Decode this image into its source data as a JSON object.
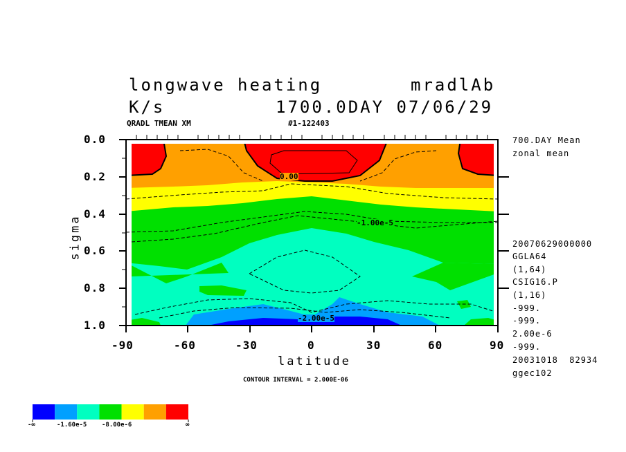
{
  "header": {
    "title_left": "longwave heating",
    "title_right": "mradlAb",
    "units": "K/s",
    "time_label": "1700.0DAY 07/06/29",
    "field_label": "QRADL TMEAN XM",
    "run_id": "#1-122403"
  },
  "side_info": {
    "top_lines": [
      "700.DAY Mean",
      "zonal mean"
    ],
    "lines": [
      "20070629000000",
      "GGLA64",
      "(1,64)",
      "CSIG16.P",
      "(1,16)",
      "-999.",
      "-999.",
      "2.00e-6",
      "-999.",
      "20031018  82934",
      "ggec102"
    ]
  },
  "contour_interval": "CONTOUR INTERVAL = 2.000E-06",
  "colorbar": {
    "colors": [
      "#0000ff",
      "#00a0ff",
      "#00ffc0",
      "#00e000",
      "#ffff00",
      "#ffa000",
      "#ff0000"
    ],
    "labels": [
      "-∞",
      "-1.60e-5",
      "-8.00e-6",
      "∞"
    ]
  },
  "chart_data": {
    "type": "contour",
    "title": "longwave heating",
    "xlabel": "latitude",
    "ylabel": "sigma",
    "xlim": [
      -90,
      90
    ],
    "ylim": [
      1.0,
      0.0
    ],
    "x_ticks": [
      "-90",
      "-60",
      "-30",
      "0",
      "30",
      "60",
      "90"
    ],
    "y_ticks": [
      "0.0",
      "0.2",
      "0.4",
      "0.6",
      "0.8",
      "1.0"
    ],
    "contour_labels": [
      "0.00",
      "-1.00e-5",
      "-2.00e-5"
    ],
    "bands": [
      {
        "color": "orange",
        "sigma_top": 0.0,
        "sigma_bottom": 0.3
      },
      {
        "color": "yellow",
        "sigma_top": 0.25,
        "sigma_bottom": 0.4
      },
      {
        "color": "green",
        "sigma_top": 0.3,
        "sigma_bottom": 0.8
      },
      {
        "color": "cyan-green",
        "sigma_top": 0.45,
        "sigma_bottom": 1.0
      },
      {
        "color": "light-blue",
        "sigma_top": 0.85,
        "sigma_bottom": 1.0
      },
      {
        "color": "blue",
        "sigma_top": 0.95,
        "sigma_bottom": 1.0
      }
    ],
    "red_regions": [
      "polar upper -90..-70",
      "equatorial upper -30..40",
      "polar upper 70..90"
    ]
  }
}
